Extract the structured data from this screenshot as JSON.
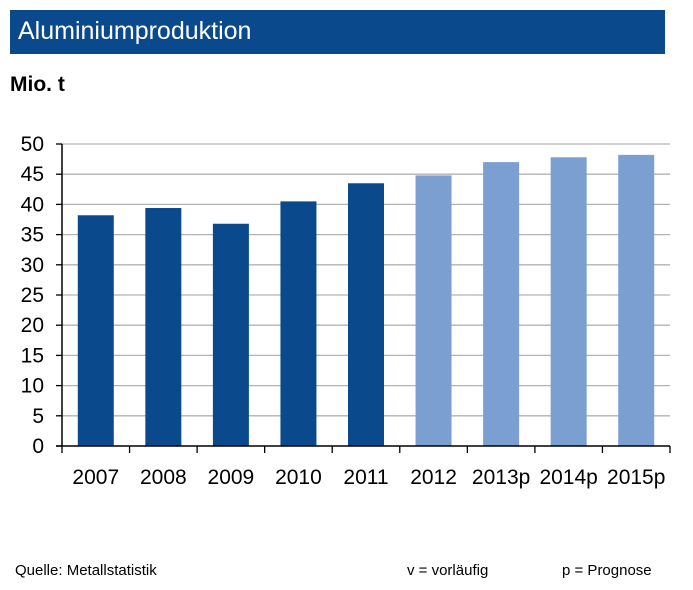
{
  "header": {
    "title": "Aluminiumproduktion"
  },
  "unit_label": "Mio. t",
  "footer": {
    "source": "Quelle:  Metallstatistik",
    "legend_v": "v = vorläufig",
    "legend_p": "p = Prognose"
  },
  "colors": {
    "actual": "#0a4a8c",
    "forecast": "#7b9fd0",
    "grid": "#b3b3b3",
    "title_bg": "#0a4a8c"
  },
  "chart_data": {
    "type": "bar",
    "title": "Aluminiumproduktion",
    "ylabel": "Mio. t",
    "categories": [
      "2007",
      "2008",
      "2009",
      "2010",
      "2011",
      "2012",
      "2013p",
      "2014p",
      "2015p"
    ],
    "values": [
      38.2,
      39.4,
      36.8,
      40.5,
      43.5,
      44.8,
      47.0,
      47.8,
      48.2
    ],
    "forecast_flags": [
      false,
      false,
      false,
      false,
      false,
      true,
      true,
      true,
      true
    ],
    "ylim": [
      0,
      50
    ],
    "yticks": [
      0,
      5,
      10,
      15,
      20,
      25,
      30,
      35,
      40,
      45,
      50
    ],
    "grid": true
  }
}
